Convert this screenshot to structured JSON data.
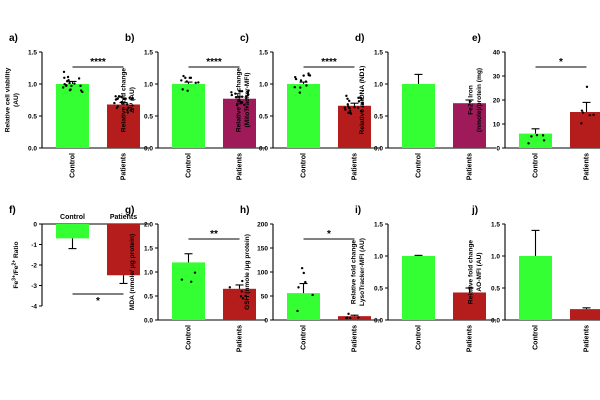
{
  "colors": {
    "control": "#33ff33",
    "patient_red": "#b51d1d",
    "patient_purple": "#9e1a59",
    "dot": "#000000"
  },
  "chart_data": [
    {
      "panel": "a)",
      "type": "bar",
      "categories": [
        "Control",
        "Patients"
      ],
      "values": [
        1.0,
        0.68
      ],
      "errors": [
        0.04,
        0.03
      ],
      "ylabel": [
        "Relative cell viability",
        "(AU)"
      ],
      "ylim": [
        0,
        1.5
      ],
      "yticks": [
        "0.0",
        "0.5",
        "1.0",
        "1.5"
      ],
      "significance": "****",
      "bar_colors": [
        "#33ff33",
        "#b51d1d"
      ],
      "points": [
        18,
        22
      ]
    },
    {
      "panel": "b)",
      "type": "bar",
      "categories": [
        "Control",
        "Patients"
      ],
      "values": [
        1.0,
        0.77
      ],
      "errors": [
        0.03,
        0.03
      ],
      "ylabel": [
        "Relative fold change",
        "ΔΨ (AU)"
      ],
      "ylim": [
        0,
        1.5
      ],
      "yticks": [
        "0.0",
        "0.5",
        "1.0",
        "1.5"
      ],
      "significance": "****",
      "bar_colors": [
        "#33ff33",
        "#9e1a59"
      ],
      "points": [
        10,
        22
      ]
    },
    {
      "panel": "c)",
      "type": "bar",
      "categories": [
        "Control",
        "Patients"
      ],
      "values": [
        1.0,
        0.66
      ],
      "errors": [
        0.03,
        0.04
      ],
      "ylabel": [
        "Relative fold change",
        "(MitoTracker-MFI)"
      ],
      "ylim": [
        0,
        1.5
      ],
      "yticks": [
        "0.0",
        "0.5",
        "1.0",
        "1.5"
      ],
      "significance": "****",
      "bar_colors": [
        "#33ff33",
        "#b51d1d"
      ],
      "points": [
        12,
        22
      ]
    },
    {
      "panel": "d)",
      "type": "bar",
      "categories": [
        "Control",
        "Patients"
      ],
      "values": [
        1.0,
        0.7
      ],
      "errors": [
        0.15,
        0.05
      ],
      "ylabel": [
        "Relative mtDNA (ND1)"
      ],
      "ylim": [
        0,
        1.5
      ],
      "yticks": [
        "0.0",
        "0.5",
        "1.0",
        "1.5"
      ],
      "significance": "",
      "bar_colors": [
        "#33ff33",
        "#9e1a59"
      ],
      "points": [
        0,
        0
      ]
    },
    {
      "panel": "e)",
      "type": "bar",
      "categories": [
        "Control",
        "Patients"
      ],
      "values": [
        6.0,
        15.0
      ],
      "errors": [
        2.0,
        4.0
      ],
      "ylabel": [
        "Fe2+ Iron",
        "(nmole)/protein (mg)"
      ],
      "ylim": [
        0,
        40
      ],
      "yticks": [
        "0",
        "10",
        "20",
        "30",
        "40"
      ],
      "significance": "*",
      "bar_colors": [
        "#33ff33",
        "#b51d1d"
      ],
      "points": [
        5,
        6
      ]
    },
    {
      "panel": "f)",
      "type": "bar",
      "categories": [
        "Control",
        "Patients"
      ],
      "values": [
        -0.7,
        -2.5
      ],
      "errors": [
        0.5,
        0.4
      ],
      "ylabel": [
        "Fe3+/Fe2+ Ratio"
      ],
      "ylim": [
        -4,
        0
      ],
      "yticks": [
        "0",
        "-1",
        "-2",
        "-3",
        "-4"
      ],
      "significance": "*",
      "bar_colors": [
        "#33ff33",
        "#b51d1d"
      ],
      "points": [
        0,
        0
      ]
    },
    {
      "panel": "g)",
      "type": "bar",
      "categories": [
        "Control",
        "Patients"
      ],
      "values": [
        1.2,
        0.65
      ],
      "errors": [
        0.18,
        0.08
      ],
      "ylabel": [
        "MDA (nmole/ μg protein)"
      ],
      "ylim": [
        0,
        2.0
      ],
      "yticks": [
        "0.0",
        "0.5",
        "1.0",
        "1.5",
        "2.0"
      ],
      "significance": "**",
      "bar_colors": [
        "#33ff33",
        "#b51d1d"
      ],
      "points": [
        3,
        6
      ]
    },
    {
      "panel": "h)",
      "type": "bar",
      "categories": [
        "Control",
        "Patients"
      ],
      "values": [
        56,
        8
      ],
      "errors": [
        20,
        2
      ],
      "ylabel": [
        "GSH (nmole /μg protein)"
      ],
      "ylim": [
        0,
        200
      ],
      "yticks": [
        "0",
        "50",
        "100",
        "150",
        "200"
      ],
      "significance": "*",
      "bar_colors": [
        "#33ff33",
        "#b51d1d"
      ],
      "points": [
        6,
        5
      ]
    },
    {
      "panel": "i)",
      "type": "bar",
      "categories": [
        "Control",
        "Patients"
      ],
      "values": [
        1.0,
        0.43
      ],
      "errors": [
        0.01,
        0.07
      ],
      "ylabel": [
        "Relative fold change",
        "LysoTracker-MFI (AU)"
      ],
      "ylim": [
        0,
        1.5
      ],
      "yticks": [
        "0.0",
        "0.5",
        "1.0",
        "1.5"
      ],
      "significance": "",
      "bar_colors": [
        "#33ff33",
        "#b51d1d"
      ],
      "points": [
        0,
        0
      ]
    },
    {
      "panel": "j)",
      "type": "bar",
      "categories": [
        "Control",
        "Patients"
      ],
      "values": [
        1.0,
        0.17
      ],
      "errors": [
        0.4,
        0.02
      ],
      "ylabel": [
        "Relative fold change",
        "AO-MFI (AU)"
      ],
      "ylim": [
        0,
        1.5
      ],
      "yticks": [
        "0.0",
        "0.5",
        "1.0",
        "1.5"
      ],
      "significance": "",
      "bar_colors": [
        "#33ff33",
        "#b51d1d"
      ],
      "points": [
        0,
        0
      ]
    }
  ]
}
